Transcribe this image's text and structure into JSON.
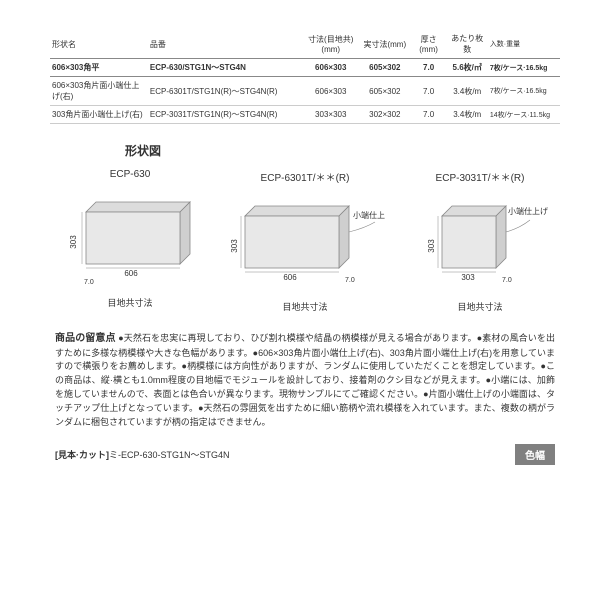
{
  "table": {
    "headers": [
      "形状名",
      "品番",
      "寸法(目地共)(mm)",
      "実寸法(mm)",
      "厚さ(mm)",
      "あたり枚数",
      "入数·重量"
    ],
    "rows": [
      {
        "bold": true,
        "cells": [
          "606×303角平",
          "ECP-630/STG1N～STG4N",
          "606×303",
          "605×302",
          "7.0",
          "5.6枚/㎡",
          "7枚/ケース·16.5kg"
        ]
      },
      {
        "bold": false,
        "cells": [
          "606×303角片面小端仕上げ(右)",
          "ECP-6301T/STG1N(R)～STG4N(R)",
          "606×303",
          "605×302",
          "7.0",
          "3.4枚/m",
          "7枚/ケース·16.5kg"
        ]
      },
      {
        "bold": false,
        "cells": [
          "303角片面小端仕上げ(右)",
          "ECP-3031T/STG1N(R)～STG4N(R)",
          "303×303",
          "302×302",
          "7.0",
          "3.4枚/m",
          "14枚/ケース·11.5kg"
        ]
      }
    ]
  },
  "shapes": {
    "title": "形状図",
    "items": [
      {
        "label": "ECP‐630",
        "caption": "目地共寸法",
        "annotation": ""
      },
      {
        "label": "ECP‐6301T/＊＊(R)",
        "caption": "目地共寸法",
        "annotation": "小端仕上げ"
      },
      {
        "label": "ECP‐3031T/＊＊(R)",
        "caption": "目地共寸法",
        "annotation": "小端仕上げ"
      }
    ],
    "dims": {
      "w606": "606",
      "w303": "303",
      "h303": "303",
      "t70": "7.0"
    },
    "colors": {
      "face": "#e8e8e8",
      "side": "#cfcfcf",
      "top": "#dcdcdc",
      "stroke": "#888",
      "text": "#333"
    }
  },
  "notes": {
    "title": "商品の留意点",
    "body": "●天然石を忠実に再現しており、ひび割れ模様や結晶の柄模様が見える場合があります。●素材の風合いを出すために多様な柄模様や大きな色幅があります。●606×303角片面小端仕上げ(右)、303角片面小端仕上げ(右)を用意していますので横張りをお薦めします。●柄模様には方向性がありますが、ランダムに使用していただくことを想定しています。●この商品は、縦·横とも1.0mm程度の目地幅でモジュールを設計しており、接着剤のクシ目などが見えます。●小端には、加飾を施していませんので、表面とは色合いが異なります。現物サンプルにてご確認ください。●片面小端仕上げの小端面は、タッチアップ仕上げとなっています。●天然石の雰囲気を出すために細い筋柄や流れ模様を入れています。また、複数の柄がランダムに梱包されていますが柄の指定はできません。"
  },
  "sample": {
    "label": "[見本·カット]",
    "text": "ミ-ECP-630-STG1N～STG4N"
  },
  "badge": "色幅"
}
